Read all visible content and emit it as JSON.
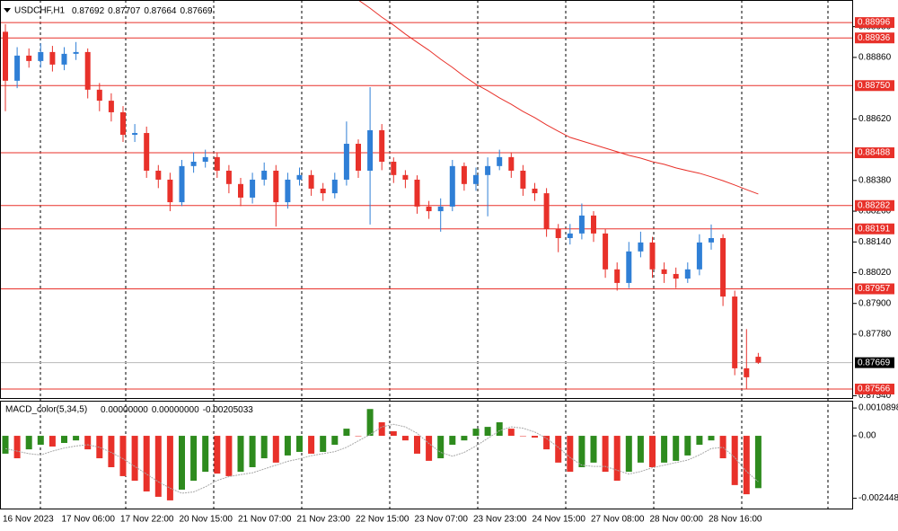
{
  "chart_data": [
    {
      "type": "candlestick",
      "title": "USDCHF,H1",
      "categories": [
        "16 Nov 2023",
        null,
        null,
        null,
        null,
        "17 Nov 06:00",
        null,
        null,
        null,
        null,
        "17 Nov 22:00",
        null,
        null,
        null,
        null,
        "20 Nov 15:00",
        null,
        null,
        null,
        null,
        "21 Nov 07:00",
        null,
        null,
        null,
        null,
        "21 Nov 23:00",
        null,
        null,
        null,
        null,
        "22 Nov 15:00",
        null,
        null,
        null,
        null,
        "23 Nov 07:00",
        null,
        null,
        null,
        null,
        "23 Nov 23:00",
        null,
        null,
        null,
        null,
        "24 Nov 15:00",
        null,
        null,
        null,
        null,
        "27 Nov 08:00",
        null,
        null,
        null,
        null,
        "28 Nov 00:00",
        null,
        null,
        null,
        null,
        "28 Nov 16:00",
        null,
        null,
        null,
        null
      ],
      "open": [
        0.8896,
        0.88769,
        0.88867,
        0.88846,
        0.88881,
        0.88832,
        0.88874,
        0.88881,
        0.88734,
        0.88691,
        0.88646,
        0.88558,
        0.88565,
        0.88418,
        0.88383,
        0.88295,
        0.88436,
        0.88453,
        0.88471,
        0.88418,
        0.88366,
        0.88313,
        0.88383,
        0.88418,
        0.88295,
        0.88383,
        0.88401,
        0.88348,
        0.8833,
        0.88383,
        0.88523,
        0.88418,
        0.88576,
        0.88453,
        0.88401,
        0.88383,
        0.88278,
        0.8826,
        0.88278,
        0.88436,
        0.88366,
        0.88401,
        0.88436,
        0.88471,
        0.88418,
        0.88348,
        0.8833,
        0.8819,
        0.88155,
        0.88173,
        0.88243,
        0.88173,
        0.88033,
        0.8798,
        0.88103,
        0.88138,
        0.88033,
        0.88015,
        0.87997,
        0.88033,
        0.88138,
        0.88155,
        0.87927,
        0.87647,
        0.87692
      ],
      "high": [
        0.8899,
        0.889,
        0.88895,
        0.88915,
        0.88905,
        0.889,
        0.8892,
        0.88895,
        0.8876,
        0.8872,
        0.8867,
        0.886,
        0.8859,
        0.8844,
        0.8841,
        0.8846,
        0.8849,
        0.885,
        0.8849,
        0.8844,
        0.8839,
        0.8841,
        0.8845,
        0.8844,
        0.8841,
        0.8843,
        0.8842,
        0.8837,
        0.8841,
        0.8861,
        0.8854,
        0.88744,
        0.886,
        0.8847,
        0.8842,
        0.884,
        0.883,
        0.8831,
        0.8846,
        0.8845,
        0.8843,
        0.8847,
        0.885,
        0.8849,
        0.8844,
        0.8837,
        0.8835,
        0.8821,
        0.8821,
        0.8829,
        0.8826,
        0.8819,
        0.8806,
        0.8814,
        0.8818,
        0.8816,
        0.8806,
        0.8804,
        0.8806,
        0.8817,
        0.88208,
        0.8817,
        0.8795,
        0.878,
        0.87707
      ],
      "low": [
        0.8865,
        0.8874,
        0.8882,
        0.8882,
        0.88805,
        0.8881,
        0.8885,
        0.887,
        0.8865,
        0.8861,
        0.8853,
        0.8853,
        0.8839,
        0.8835,
        0.8826,
        0.8828,
        0.8841,
        0.8843,
        0.8839,
        0.8833,
        0.8828,
        0.8829,
        0.8836,
        0.882,
        0.8827,
        0.8836,
        0.8832,
        0.883,
        0.8831,
        0.8836,
        0.8839,
        0.88208,
        0.8842,
        0.8837,
        0.8835,
        0.8825,
        0.8823,
        0.8818,
        0.8826,
        0.8834,
        0.8834,
        0.8824,
        0.8842,
        0.8839,
        0.8832,
        0.883,
        0.8816,
        0.881,
        0.8813,
        0.8815,
        0.8814,
        0.88,
        0.8795,
        0.8796,
        0.8808,
        0.88,
        0.8798,
        0.8796,
        0.8798,
        0.8801,
        0.8811,
        0.8789,
        0.8762,
        0.87566,
        0.87664
      ],
      "close": [
        0.88769,
        0.88867,
        0.88846,
        0.88881,
        0.88832,
        0.88874,
        0.88881,
        0.88734,
        0.88691,
        0.88646,
        0.88558,
        0.88565,
        0.88418,
        0.88383,
        0.88295,
        0.88436,
        0.88453,
        0.88471,
        0.88418,
        0.88366,
        0.88313,
        0.88383,
        0.88418,
        0.88295,
        0.88383,
        0.88401,
        0.88348,
        0.8833,
        0.88383,
        0.88523,
        0.88418,
        0.88576,
        0.88453,
        0.88401,
        0.88383,
        0.88278,
        0.8826,
        0.88278,
        0.88436,
        0.88366,
        0.88401,
        0.88436,
        0.88471,
        0.88418,
        0.88348,
        0.8833,
        0.8819,
        0.88155,
        0.88173,
        0.88243,
        0.88173,
        0.88033,
        0.8798,
        0.88103,
        0.88138,
        0.88033,
        0.88015,
        0.87997,
        0.88033,
        0.88138,
        0.88155,
        0.87927,
        0.87647,
        0.87612,
        0.87669
      ],
      "ma": [
        null,
        null,
        null,
        null,
        null,
        null,
        null,
        null,
        null,
        null,
        null,
        null,
        null,
        null,
        null,
        null,
        null,
        null,
        null,
        null,
        null,
        null,
        null,
        null,
        null,
        null,
        null,
        null,
        null,
        null,
        0.89084,
        0.89052,
        0.89017,
        0.88986,
        0.88951,
        0.88919,
        0.88888,
        0.88853,
        0.88821,
        0.88786,
        0.88755,
        0.8873,
        0.88702,
        0.88677,
        0.88649,
        0.88625,
        0.88597,
        0.88572,
        0.88548,
        0.88534,
        0.8852,
        0.88506,
        0.88492,
        0.88478,
        0.88467,
        0.88453,
        0.88443,
        0.88429,
        0.88418,
        0.88408,
        0.88394,
        0.88379,
        0.88362,
        0.88344,
        0.88327
      ],
      "up_color": "#2f7fd6",
      "down_color": "#e8312a",
      "ma_color": "#e8312a",
      "level_color": "#e8312a",
      "ylim": [
        0.87531,
        0.89084
      ],
      "yticks": [
        {
          "value": 0.8898,
          "label": "0.88980"
        },
        {
          "value": 0.8886,
          "label": "0.88860"
        },
        {
          "value": 0.8862,
          "label": "0.88620"
        },
        {
          "value": 0.8838,
          "label": "0.88380"
        },
        {
          "value": 0.8826,
          "label": "0.88260"
        },
        {
          "value": 0.8814,
          "label": "0.88140"
        },
        {
          "value": 0.8802,
          "label": "0.88020"
        },
        {
          "value": 0.879,
          "label": "0.87900"
        },
        {
          "value": 0.8778,
          "label": "0.87780"
        },
        {
          "value": 0.8754,
          "label": "0.87540"
        }
      ],
      "levels": [
        {
          "value": 0.88996,
          "label": "0.88996"
        },
        {
          "value": 0.88936,
          "label": "0.88936"
        },
        {
          "value": 0.8875,
          "label": "0.88750"
        },
        {
          "value": 0.88488,
          "label": "0.88488"
        },
        {
          "value": 0.88282,
          "label": "0.88282"
        },
        {
          "value": 0.88191,
          "label": "0.88191"
        },
        {
          "value": 0.87957,
          "label": "0.87957"
        },
        {
          "value": 0.87566,
          "label": "0.87566"
        }
      ]
    },
    {
      "type": "bar",
      "title": "MACD_color(5,34,5)",
      "header_values": [
        "0.00000000",
        "0.00000000",
        "-0.00205033"
      ],
      "values": [
        -0.0007,
        -0.00088,
        -0.00053,
        -0.00035,
        -0.00042,
        -0.00028,
        -0.00018,
        -0.00053,
        -0.00088,
        -0.00123,
        -0.00158,
        -0.00176,
        -0.00218,
        -0.00239,
        -0.00253,
        -0.00211,
        -0.00176,
        -0.00141,
        -0.00148,
        -0.00158,
        -0.00141,
        -0.00123,
        -0.00088,
        -0.00105,
        -0.00077,
        -0.00063,
        -0.0007,
        -0.00063,
        -0.00035,
        0.00028,
        0,
        0.00105,
        0.00053,
        0.00018,
        -0.00018,
        -0.0007,
        -0.00098,
        -0.00088,
        -0.00035,
        -0.00018,
        0.00028,
        0.00035,
        0.00053,
        0.00028,
        0,
        -7e-05,
        -0.00053,
        -0.00105,
        -0.00141,
        -0.00123,
        -0.00105,
        -0.00141,
        -0.00176,
        -0.00141,
        -0.00105,
        -0.00123,
        -0.00105,
        -0.00098,
        -0.00077,
        -0.00035,
        -0.00018,
        -0.00088,
        -0.00193,
        -0.00229,
        -0.00205033
      ],
      "signal": [
        -0.0005,
        -0.0006,
        -0.0007,
        -0.00075,
        -0.0006,
        -0.00048,
        -0.0004,
        -0.00035,
        -0.00045,
        -0.00065,
        -0.0009,
        -0.0012,
        -0.0015,
        -0.0018,
        -0.00205,
        -0.00225,
        -0.0022,
        -0.002,
        -0.00175,
        -0.0016,
        -0.00152,
        -0.00145,
        -0.0013,
        -0.00115,
        -0.001,
        -0.0009,
        -0.00078,
        -0.0007,
        -0.00062,
        -0.00045,
        -0.0002,
        5e-05,
        0.00035,
        0.00045,
        0.00035,
        0.0001,
        -0.0003,
        -0.00065,
        -0.0008,
        -0.00065,
        -0.0004,
        -0.0001,
        0.0002,
        0.00035,
        0.0003,
        0.00015,
        -0.0001,
        -0.00045,
        -0.00085,
        -0.00115,
        -0.0012,
        -0.0012,
        -0.00135,
        -0.0015,
        -0.0014,
        -0.00125,
        -0.00115,
        -0.00105,
        -0.00095,
        -0.00075,
        -0.0005,
        -0.00045,
        -0.00085,
        -0.0014,
        -0.0018
      ],
      "up_color": "#2e8b1e",
      "down_color": "#e8312a",
      "signal_color": "#a8a8a8",
      "y2lim": [
        -0.00285,
        0.00134
      ],
      "y2ticks": [
        {
          "value": 0.0010898,
          "label": "0.0010898"
        },
        {
          "value": 0,
          "label": "0.00"
        },
        {
          "value": -0.002448,
          "label": "-0.0024480"
        }
      ]
    }
  ]
}
